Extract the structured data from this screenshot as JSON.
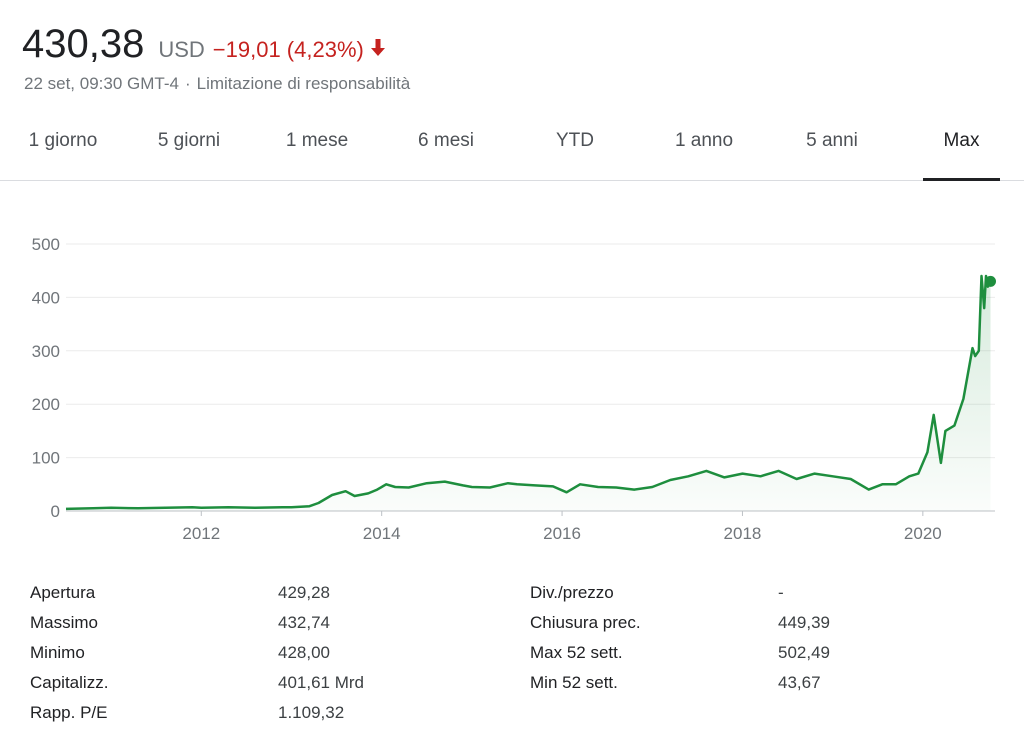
{
  "quote": {
    "price": "430,38",
    "currency": "USD",
    "change": "−19,01 (4,23%)",
    "direction": "down",
    "down_color": "#c5221f",
    "timestamp": "22 set, 09:30 GMT-4",
    "separator": "·",
    "disclaimer": "Limitazione di responsabilità"
  },
  "tabs": [
    {
      "label": "1 giorno",
      "active": false
    },
    {
      "label": "5 giorni",
      "active": false
    },
    {
      "label": "1 mese",
      "active": false
    },
    {
      "label": "6 mesi",
      "active": false
    },
    {
      "label": "YTD",
      "active": false
    },
    {
      "label": "1 anno",
      "active": false
    },
    {
      "label": "5 anni",
      "active": false
    },
    {
      "label": "Max",
      "active": true
    }
  ],
  "chart_data": {
    "type": "area",
    "line_color": "#1e8e3e",
    "grid": true,
    "ylim": [
      0,
      500
    ],
    "xlim": [
      2010.5,
      2020.8
    ],
    "y_ticks": [
      0,
      100,
      200,
      300,
      400,
      500
    ],
    "x_ticks": [
      2012,
      2014,
      2016,
      2018,
      2020
    ],
    "x_tick_labels": [
      "2012",
      "2014",
      "2016",
      "2018",
      "2020"
    ],
    "series": [
      {
        "x": [
          2010.5,
          2010.8,
          2011.0,
          2011.3,
          2011.6,
          2011.9,
          2012.0,
          2012.3,
          2012.6,
          2012.9,
          2013.0,
          2013.2,
          2013.3,
          2013.45,
          2013.6,
          2013.7,
          2013.85,
          2013.95,
          2014.05,
          2014.15,
          2014.3,
          2014.5,
          2014.7,
          2014.9,
          2015.0,
          2015.2,
          2015.4,
          2015.5,
          2015.7,
          2015.9,
          2016.05,
          2016.2,
          2016.4,
          2016.6,
          2016.8,
          2017.0,
          2017.2,
          2017.4,
          2017.6,
          2017.8,
          2018.0,
          2018.2,
          2018.4,
          2018.6,
          2018.8,
          2019.0,
          2019.2,
          2019.4,
          2019.55,
          2019.7,
          2019.85,
          2019.95,
          2020.05,
          2020.12,
          2020.2,
          2020.25,
          2020.35,
          2020.45,
          2020.55,
          2020.58,
          2020.62,
          2020.65,
          2020.68,
          2020.7,
          2020.72,
          2020.75
        ],
        "values": [
          4,
          5,
          6,
          5,
          6,
          7,
          6,
          7,
          6,
          7,
          7,
          9,
          15,
          30,
          37,
          28,
          33,
          40,
          50,
          45,
          44,
          52,
          55,
          48,
          45,
          44,
          52,
          50,
          48,
          46,
          35,
          50,
          45,
          44,
          40,
          45,
          58,
          65,
          75,
          63,
          70,
          65,
          75,
          60,
          70,
          65,
          60,
          40,
          50,
          50,
          65,
          70,
          110,
          180,
          90,
          150,
          160,
          210,
          305,
          290,
          300,
          440,
          380,
          440,
          420,
          430
        ]
      }
    ]
  },
  "stats": {
    "left": [
      {
        "label": "Apertura",
        "value": "429,28"
      },
      {
        "label": "Massimo",
        "value": "432,74"
      },
      {
        "label": "Minimo",
        "value": "428,00"
      },
      {
        "label": "Capitalizz.",
        "value": "401,61 Mrd"
      },
      {
        "label": "Rapp. P/E",
        "value": "1.109,32"
      }
    ],
    "right": [
      {
        "label": "Div./prezzo",
        "value": "-"
      },
      {
        "label": "Chiusura prec.",
        "value": "449,39"
      },
      {
        "label": "Max 52 sett.",
        "value": "502,49"
      },
      {
        "label": "Min 52 sett.",
        "value": "43,67"
      }
    ]
  }
}
